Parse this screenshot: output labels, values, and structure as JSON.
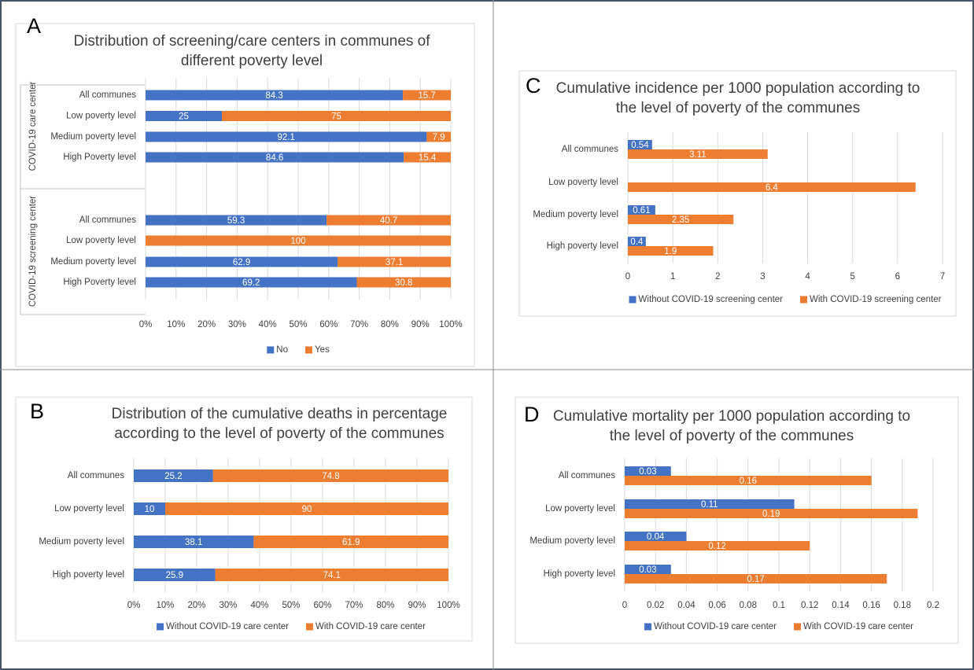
{
  "chart_data": [
    {
      "type": "bar",
      "orientation": "horizontal",
      "stacked": true,
      "panel_label": "A",
      "title": "Distribution of screening/care centers in communes of different poverty level",
      "groups": [
        {
          "label": "COVID-19 care center",
          "categories": [
            "All communes",
            "Low poverty level",
            "Medium poverty level",
            "High Poverty level"
          ]
        },
        {
          "label": "COVID-19 screening center",
          "categories": [
            "All communes",
            "Low poverty level",
            "Medium poverty level",
            "High Poverty level"
          ]
        }
      ],
      "series": [
        {
          "name": "No",
          "color": "#4472c4",
          "values": [
            84.3,
            25,
            92.1,
            84.6,
            59.3,
            null,
            62.9,
            69.2
          ]
        },
        {
          "name": "Yes",
          "color": "#ed7d31",
          "values": [
            15.7,
            75,
            7.9,
            15.4,
            40.7,
            100,
            37.1,
            30.8
          ]
        }
      ],
      "xlim": [
        0,
        100
      ],
      "xticks": [
        {
          "value": 0,
          "label": "0%"
        },
        {
          "value": 10,
          "label": "10%"
        },
        {
          "value": 20,
          "label": "20%"
        },
        {
          "value": 30,
          "label": "30%"
        },
        {
          "value": 40,
          "label": "40%"
        },
        {
          "value": 50,
          "label": "50%"
        },
        {
          "value": 60,
          "label": "60%"
        },
        {
          "value": 70,
          "label": "70%"
        },
        {
          "value": 80,
          "label": "80%"
        },
        {
          "value": 90,
          "label": "90%"
        },
        {
          "value": 100,
          "label": "100%"
        }
      ],
      "grid": true,
      "legend": "bottom"
    },
    {
      "type": "bar",
      "orientation": "horizontal",
      "stacked": true,
      "panel_label": "B",
      "title": "Distribution of the cumulative deaths in percentage according to the level of poverty of the communes",
      "categories": [
        "All communes",
        "Low poverty level",
        "Medium poverty level",
        "High poverty level"
      ],
      "series": [
        {
          "name": "Without COVID-19 care center",
          "color": "#4472c4",
          "values": [
            25.2,
            10,
            38.1,
            25.9
          ]
        },
        {
          "name": "With COVID-19 care center",
          "color": "#ed7d31",
          "values": [
            74.8,
            90,
            61.9,
            74.1
          ]
        }
      ],
      "xlim": [
        0,
        100
      ],
      "xticks": [
        {
          "value": 0,
          "label": "0%"
        },
        {
          "value": 10,
          "label": "10%"
        },
        {
          "value": 20,
          "label": "20%"
        },
        {
          "value": 30,
          "label": "30%"
        },
        {
          "value": 40,
          "label": "40%"
        },
        {
          "value": 50,
          "label": "50%"
        },
        {
          "value": 60,
          "label": "60%"
        },
        {
          "value": 70,
          "label": "70%"
        },
        {
          "value": 80,
          "label": "80%"
        },
        {
          "value": 90,
          "label": "90%"
        },
        {
          "value": 100,
          "label": "100%"
        }
      ],
      "grid": true,
      "legend": "bottom"
    },
    {
      "type": "bar",
      "orientation": "horizontal",
      "stacked": false,
      "panel_label": "C",
      "title": "Cumulative incidence per 1000 population according to the level of poverty of the communes",
      "categories": [
        "All communes",
        "Low poverty level",
        "Medium poverty level",
        "High poverty level"
      ],
      "series": [
        {
          "name": "Without COVID-19 screening center",
          "color": "#4472c4",
          "values": [
            0.54,
            null,
            0.61,
            0.4
          ]
        },
        {
          "name": "With COVID-19 screening center",
          "color": "#ed7d31",
          "values": [
            3.11,
            6.4,
            2.35,
            1.9
          ]
        }
      ],
      "xlim": [
        0,
        7
      ],
      "xticks": [
        0,
        1,
        2,
        3,
        4,
        5,
        6,
        7
      ],
      "grid": true,
      "legend": "bottom"
    },
    {
      "type": "bar",
      "orientation": "horizontal",
      "stacked": false,
      "panel_label": "D",
      "title": "Cumulative mortality per 1000 population according to the level of poverty of the communes",
      "categories": [
        "All communes",
        "Low poverty level",
        "Medium poverty level",
        "High poverty level"
      ],
      "series": [
        {
          "name": "Without COVID-19 care center",
          "color": "#4472c4",
          "values": [
            0.03,
            0.11,
            0.04,
            0.03
          ]
        },
        {
          "name": "With COVID-19 care center",
          "color": "#ed7d31",
          "values": [
            0.16,
            0.19,
            0.12,
            0.17
          ]
        }
      ],
      "xlim": [
        0,
        0.2
      ],
      "xticks": [
        0,
        0.02,
        0.04,
        0.06,
        0.08,
        0.1,
        0.12,
        0.14,
        0.16,
        0.18,
        0.2
      ],
      "grid": true,
      "legend": "bottom"
    }
  ]
}
